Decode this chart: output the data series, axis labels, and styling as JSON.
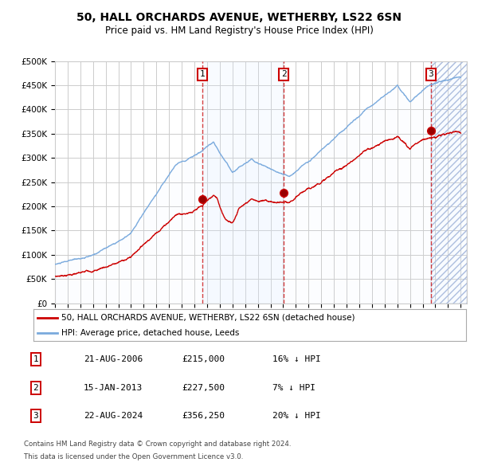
{
  "title": "50, HALL ORCHARDS AVENUE, WETHERBY, LS22 6SN",
  "subtitle": "Price paid vs. HM Land Registry's House Price Index (HPI)",
  "ylim": [
    0,
    500000
  ],
  "xlim_start": 1995.0,
  "xlim_end": 2027.5,
  "sale_dates_num": [
    2006.644,
    2013.042,
    2024.644
  ],
  "sale_prices": [
    215000,
    227500,
    356250
  ],
  "sale_labels": [
    "1",
    "2",
    "3"
  ],
  "legend_property": "50, HALL ORCHARDS AVENUE, WETHERBY, LS22 6SN (detached house)",
  "legend_hpi": "HPI: Average price, detached house, Leeds",
  "table_rows": [
    {
      "num": "1",
      "date": "21-AUG-2006",
      "price": "£215,000",
      "change": "16% ↓ HPI"
    },
    {
      "num": "2",
      "date": "15-JAN-2013",
      "price": "£227,500",
      "change": "7% ↓ HPI"
    },
    {
      "num": "3",
      "date": "22-AUG-2024",
      "price": "£356,250",
      "change": "20% ↓ HPI"
    }
  ],
  "footnote1": "Contains HM Land Registry data © Crown copyright and database right 2024.",
  "footnote2": "This data is licensed under the Open Government Licence v3.0.",
  "property_line_color": "#cc0000",
  "hpi_line_color": "#7aaadd",
  "hpi_fill_color": "#ddeeff",
  "grid_color": "#cccccc",
  "bg_color": "#ffffff"
}
